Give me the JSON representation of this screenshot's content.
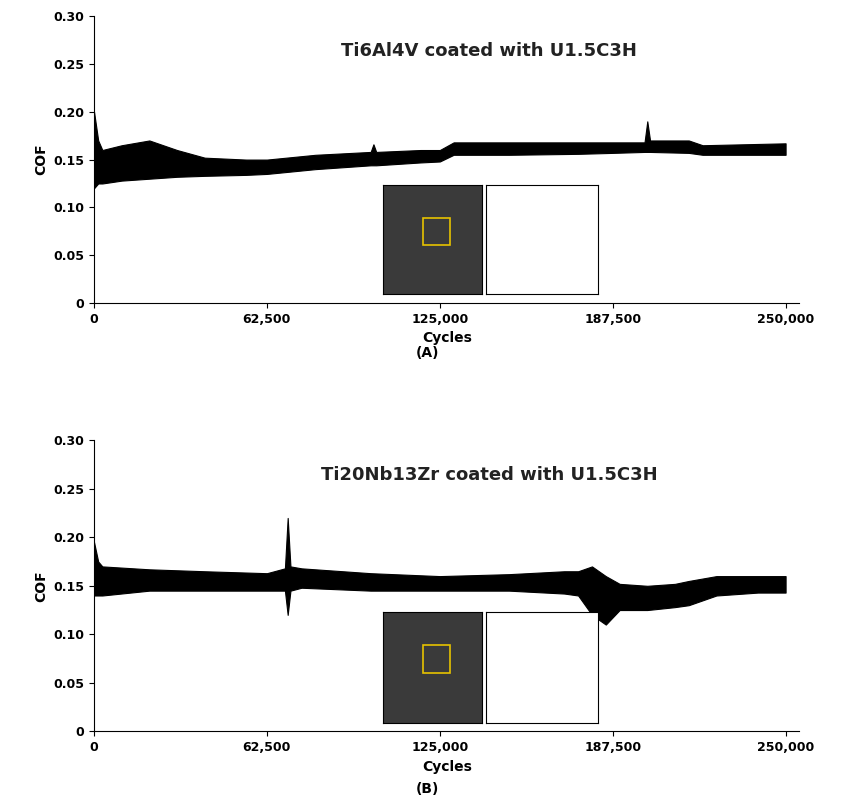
{
  "chart_data": [
    {
      "type": "area",
      "title": "Ti6Al4V coated with U1.5C3H",
      "caption": "(A)",
      "x_label": "Cycles",
      "y_label": "COF",
      "color": "#000000",
      "x": [
        0,
        1500,
        3000,
        10000,
        20000,
        30000,
        40000,
        55000,
        62500,
        80000,
        100000,
        101000,
        102000,
        118000,
        125000,
        130000,
        150000,
        175000,
        187500,
        199000,
        200000,
        201000,
        215000,
        220000,
        235000,
        250000
      ],
      "lower": [
        0.12,
        0.125,
        0.125,
        0.128,
        0.13,
        0.132,
        0.133,
        0.134,
        0.135,
        0.14,
        0.144,
        0.144,
        0.144,
        0.147,
        0.148,
        0.155,
        0.155,
        0.156,
        0.157,
        0.158,
        0.158,
        0.158,
        0.157,
        0.155,
        0.155,
        0.155
      ],
      "upper": [
        0.2,
        0.17,
        0.16,
        0.165,
        0.17,
        0.16,
        0.152,
        0.15,
        0.15,
        0.155,
        0.158,
        0.166,
        0.158,
        0.16,
        0.16,
        0.168,
        0.168,
        0.168,
        0.168,
        0.168,
        0.19,
        0.17,
        0.17,
        0.165,
        0.166,
        0.167
      ],
      "xlim": [
        0,
        255000
      ],
      "ylim": [
        0,
        0.3
      ],
      "xticks": [
        0,
        {
          "value": 62500,
          "label": "62,500"
        },
        {
          "value": 125000,
          "label": "125,000"
        },
        {
          "value": 187500,
          "label": "187,500"
        },
        {
          "value": 250000,
          "label": "250,000"
        }
      ],
      "yticks": [
        0,
        0.05,
        {
          "value": 0.1,
          "label": "0.10"
        },
        0.15,
        {
          "value": 0.2,
          "label": "0.20"
        },
        0.25,
        {
          "value": 0.3,
          "label": "0.30"
        }
      ]
    },
    {
      "type": "area",
      "title": "Ti20Nb13Zr coated with U1.5C3H",
      "caption": "(B)",
      "x_label": "Cycles",
      "y_label": "COF",
      "color": "#000000",
      "x": [
        0,
        1500,
        3000,
        20000,
        40000,
        62500,
        69000,
        70000,
        71000,
        75000,
        100000,
        125000,
        150000,
        170000,
        175000,
        180000,
        185000,
        190000,
        200000,
        210000,
        215000,
        225000,
        240000,
        250000
      ],
      "lower": [
        0.14,
        0.14,
        0.14,
        0.145,
        0.145,
        0.145,
        0.145,
        0.12,
        0.145,
        0.148,
        0.145,
        0.145,
        0.145,
        0.142,
        0.14,
        0.12,
        0.11,
        0.125,
        0.125,
        0.128,
        0.13,
        0.14,
        0.143,
        0.143
      ],
      "upper": [
        0.195,
        0.175,
        0.17,
        0.167,
        0.165,
        0.163,
        0.168,
        0.22,
        0.17,
        0.168,
        0.163,
        0.16,
        0.162,
        0.165,
        0.165,
        0.17,
        0.16,
        0.152,
        0.15,
        0.152,
        0.155,
        0.16,
        0.16,
        0.16
      ],
      "xlim": [
        0,
        255000
      ],
      "ylim": [
        0,
        0.3
      ],
      "xticks": [
        0,
        {
          "value": 62500,
          "label": "62,500"
        },
        {
          "value": 125000,
          "label": "125,000"
        },
        {
          "value": 187500,
          "label": "187,500"
        },
        {
          "value": 250000,
          "label": "250,000"
        }
      ],
      "yticks": [
        0,
        0.05,
        {
          "value": 0.1,
          "label": "0.10"
        },
        0.15,
        {
          "value": 0.2,
          "label": "0.20"
        },
        0.25,
        {
          "value": 0.3,
          "label": "0.30"
        }
      ]
    }
  ]
}
